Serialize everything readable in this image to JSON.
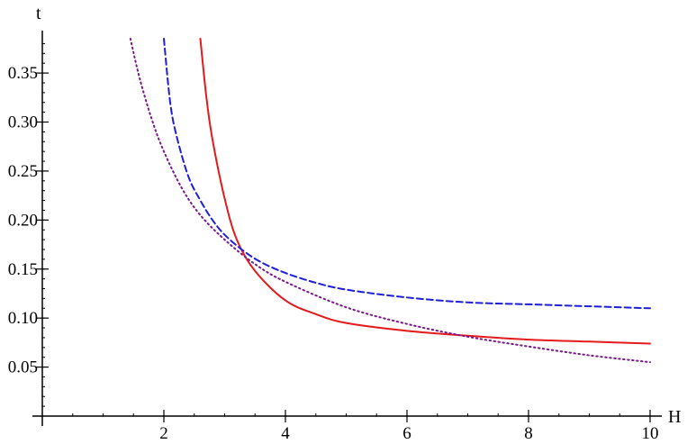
{
  "chart_data": {
    "type": "line",
    "title": "",
    "xlabel": "H",
    "ylabel": "t",
    "xlim": [
      0,
      10
    ],
    "ylim": [
      0,
      0.385
    ],
    "x_ticks": [
      2,
      4,
      6,
      8,
      10
    ],
    "x_tick_labels": [
      "2",
      "4",
      "6",
      "8",
      "10"
    ],
    "y_ticks": [
      0.05,
      0.1,
      0.15,
      0.2,
      0.25,
      0.3,
      0.35
    ],
    "y_tick_labels": [
      "0.05",
      "0.10",
      "0.15",
      "0.20",
      "0.25",
      "0.30",
      "0.35"
    ],
    "grid": false,
    "legend": "none",
    "series": [
      {
        "color": "#e41a1c",
        "style": "solid",
        "x": [
          2.6,
          2.7,
          2.8,
          3.0,
          3.2,
          3.5,
          4.0,
          4.5,
          5.0,
          6.0,
          7.0,
          8.0,
          9.0,
          10.0
        ],
        "y": [
          0.385,
          0.325,
          0.282,
          0.222,
          0.18,
          0.148,
          0.118,
          0.104,
          0.095,
          0.087,
          0.082,
          0.078,
          0.076,
          0.074
        ]
      },
      {
        "color": "#1f1fd6",
        "style": "dashed",
        "x": [
          2.0,
          2.1,
          2.2,
          2.4,
          2.6,
          2.8,
          3.0,
          3.3,
          3.6,
          4.0,
          4.5,
          5.0,
          6.0,
          7.0,
          8.0,
          9.0,
          10.0
        ],
        "y": [
          0.385,
          0.322,
          0.288,
          0.245,
          0.22,
          0.2,
          0.185,
          0.169,
          0.157,
          0.146,
          0.136,
          0.129,
          0.121,
          0.116,
          0.114,
          0.112,
          0.11
        ]
      },
      {
        "color": "#7a1a8a",
        "style": "dotted",
        "x": [
          1.45,
          1.6,
          1.8,
          2.0,
          2.3,
          2.6,
          3.0,
          3.5,
          4.0,
          5.0,
          6.0,
          7.0,
          8.0,
          9.0,
          10.0
        ],
        "y": [
          0.385,
          0.345,
          0.303,
          0.27,
          0.232,
          0.205,
          0.18,
          0.155,
          0.137,
          0.111,
          0.094,
          0.081,
          0.071,
          0.062,
          0.055
        ]
      }
    ]
  }
}
